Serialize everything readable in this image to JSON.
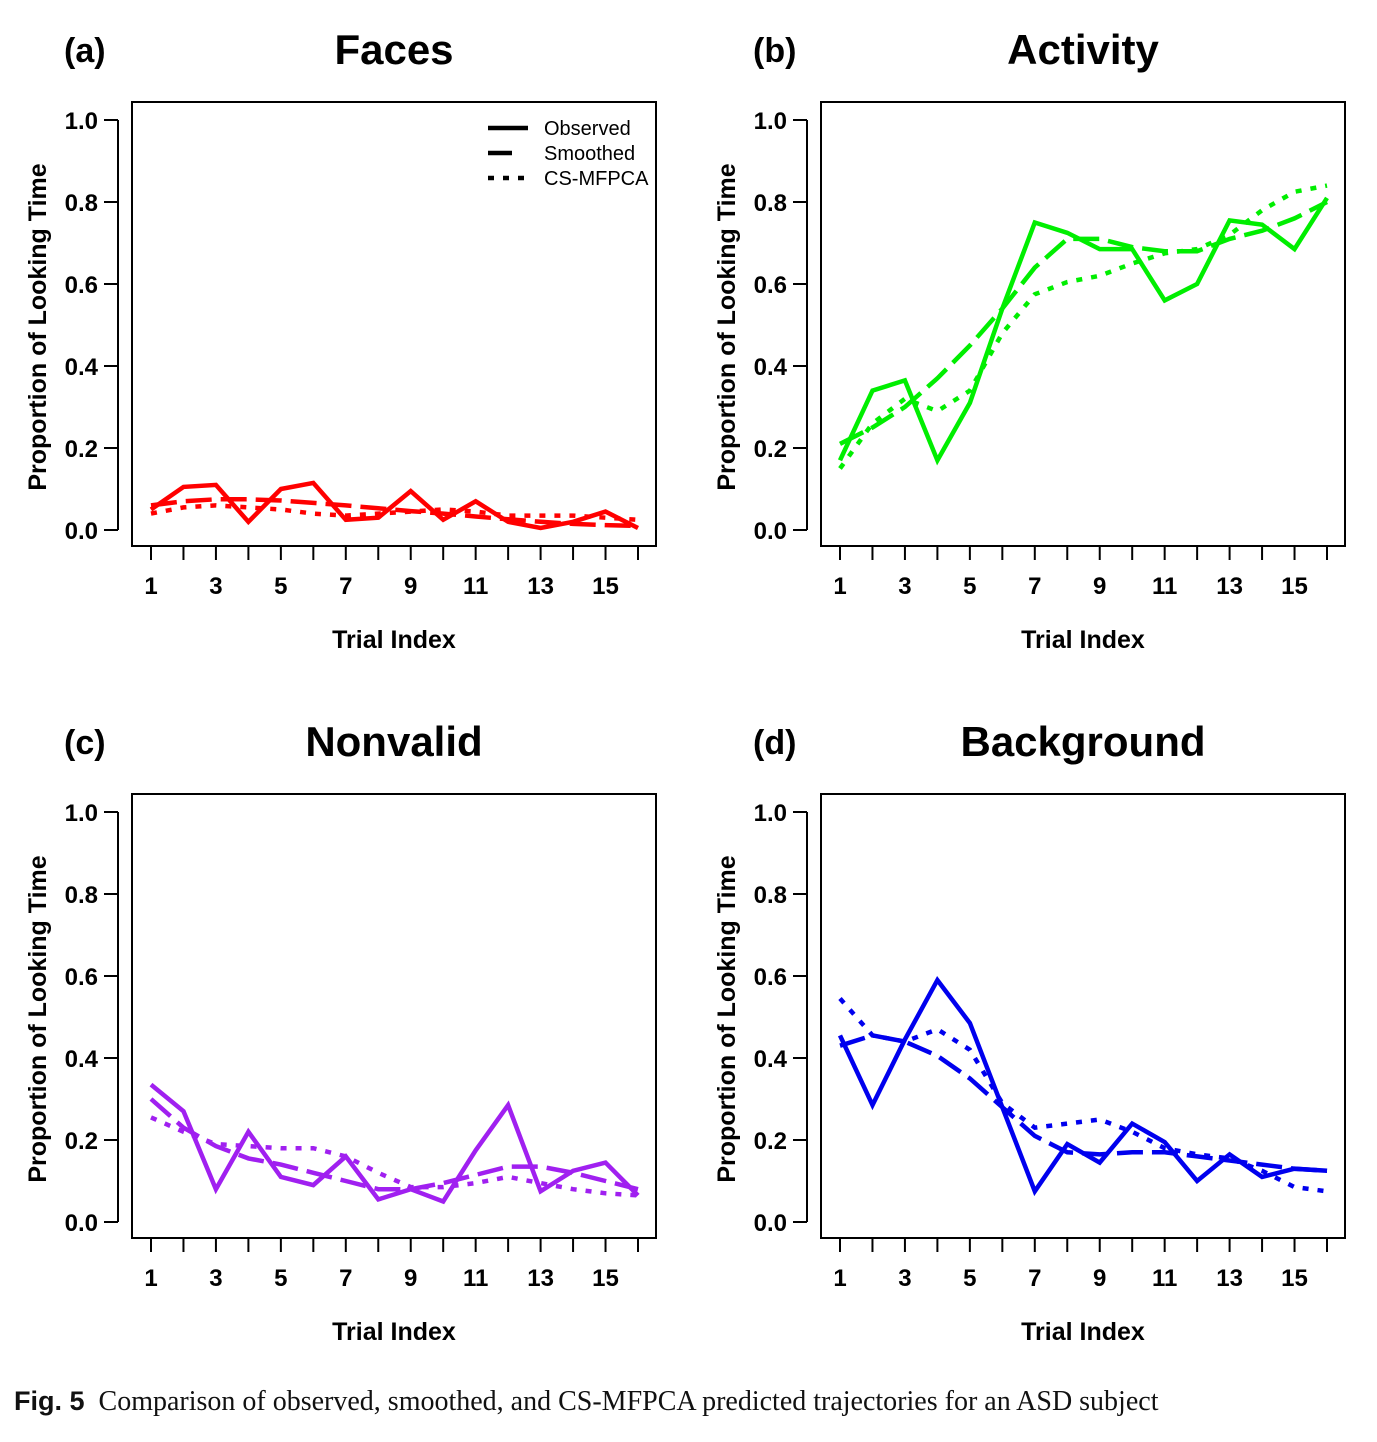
{
  "figure": {
    "caption_label": "Fig. 5",
    "caption_text": "Comparison of observed, smoothed, and CS-MFPCA predicted trajectories for an ASD subject"
  },
  "chart_data": [
    {
      "type": "line",
      "panel_label": "(a)",
      "title": "Faces",
      "xlabel": "Trial Index",
      "ylabel": "Proportion of Looking Time",
      "xlim": [
        1,
        16
      ],
      "ylim": [
        0,
        1
      ],
      "x_ticks": [
        1,
        2,
        3,
        4,
        5,
        6,
        7,
        8,
        9,
        10,
        11,
        12,
        13,
        14,
        15,
        16
      ],
      "x_tick_labels": [
        "1",
        "",
        "3",
        "",
        "5",
        "",
        "7",
        "",
        "9",
        "",
        "11",
        "",
        "13",
        "",
        "15",
        ""
      ],
      "y_ticks": [
        0.0,
        0.2,
        0.4,
        0.6,
        0.8,
        1.0
      ],
      "y_tick_labels": [
        "0.0",
        "0.2",
        "0.4",
        "0.6",
        "0.8",
        "1.0"
      ],
      "color": "#ff0000",
      "legend": {
        "placement": "top-right",
        "entries": [
          "Observed",
          "Smoothed",
          "CS-MFPCA"
        ]
      },
      "x": [
        1,
        2,
        3,
        4,
        5,
        6,
        7,
        8,
        9,
        10,
        11,
        12,
        13,
        14,
        15,
        16
      ],
      "series": [
        {
          "name": "Observed",
          "style": "solid",
          "values": [
            0.05,
            0.105,
            0.11,
            0.02,
            0.1,
            0.115,
            0.025,
            0.03,
            0.095,
            0.025,
            0.07,
            0.02,
            0.005,
            0.02,
            0.045,
            0.005
          ]
        },
        {
          "name": "Smoothed",
          "style": "dashed",
          "values": [
            0.06,
            0.07,
            0.075,
            0.075,
            0.072,
            0.066,
            0.06,
            0.053,
            0.046,
            0.04,
            0.033,
            0.026,
            0.02,
            0.015,
            0.012,
            0.01
          ]
        },
        {
          "name": "CS-MFPCA",
          "style": "dotted",
          "values": [
            0.04,
            0.055,
            0.06,
            0.055,
            0.05,
            0.04,
            0.035,
            0.04,
            0.045,
            0.05,
            0.045,
            0.035,
            0.035,
            0.035,
            0.03,
            0.025
          ]
        }
      ]
    },
    {
      "type": "line",
      "panel_label": "(b)",
      "title": "Activity",
      "xlabel": "Trial Index",
      "ylabel": "Proportion of Looking Time",
      "xlim": [
        1,
        16
      ],
      "ylim": [
        0,
        1
      ],
      "x_ticks": [
        1,
        2,
        3,
        4,
        5,
        6,
        7,
        8,
        9,
        10,
        11,
        12,
        13,
        14,
        15,
        16
      ],
      "x_tick_labels": [
        "1",
        "",
        "3",
        "",
        "5",
        "",
        "7",
        "",
        "9",
        "",
        "11",
        "",
        "13",
        "",
        "15",
        ""
      ],
      "y_ticks": [
        0.0,
        0.2,
        0.4,
        0.6,
        0.8,
        1.0
      ],
      "y_tick_labels": [
        "0.0",
        "0.2",
        "0.4",
        "0.6",
        "0.8",
        "1.0"
      ],
      "color": "#00ee00",
      "x": [
        1,
        2,
        3,
        4,
        5,
        6,
        7,
        8,
        9,
        10,
        11,
        12,
        13,
        14,
        15,
        16
      ],
      "series": [
        {
          "style": "solid",
          "values": [
            0.17,
            0.34,
            0.365,
            0.17,
            0.31,
            0.54,
            0.75,
            0.725,
            0.685,
            0.685,
            0.56,
            0.6,
            0.755,
            0.745,
            0.685,
            0.81
          ]
        },
        {
          "style": "dashed",
          "values": [
            0.21,
            0.25,
            0.3,
            0.37,
            0.45,
            0.54,
            0.64,
            0.71,
            0.71,
            0.69,
            0.68,
            0.68,
            0.71,
            0.73,
            0.76,
            0.8
          ]
        },
        {
          "style": "dotted",
          "values": [
            0.15,
            0.26,
            0.32,
            0.29,
            0.34,
            0.48,
            0.575,
            0.605,
            0.62,
            0.65,
            0.675,
            0.685,
            0.72,
            0.78,
            0.825,
            0.84
          ]
        }
      ]
    },
    {
      "type": "line",
      "panel_label": "(c)",
      "title": "Nonvalid",
      "xlabel": "Trial Index",
      "ylabel": "Proportion of Looking Time",
      "xlim": [
        1,
        16
      ],
      "ylim": [
        0,
        1
      ],
      "x_ticks": [
        1,
        2,
        3,
        4,
        5,
        6,
        7,
        8,
        9,
        10,
        11,
        12,
        13,
        14,
        15,
        16
      ],
      "x_tick_labels": [
        "1",
        "",
        "3",
        "",
        "5",
        "",
        "7",
        "",
        "9",
        "",
        "11",
        "",
        "13",
        "",
        "15",
        ""
      ],
      "y_ticks": [
        0.0,
        0.2,
        0.4,
        0.6,
        0.8,
        1.0
      ],
      "y_tick_labels": [
        "0.0",
        "0.2",
        "0.4",
        "0.6",
        "0.8",
        "1.0"
      ],
      "color": "#a020f0",
      "x": [
        1,
        2,
        3,
        4,
        5,
        6,
        7,
        8,
        9,
        10,
        11,
        12,
        13,
        14,
        15,
        16
      ],
      "series": [
        {
          "style": "solid",
          "values": [
            0.335,
            0.27,
            0.08,
            0.22,
            0.11,
            0.09,
            0.16,
            0.055,
            0.08,
            0.05,
            0.175,
            0.285,
            0.075,
            0.125,
            0.145,
            0.065
          ]
        },
        {
          "style": "dashed",
          "values": [
            0.3,
            0.23,
            0.185,
            0.155,
            0.14,
            0.12,
            0.1,
            0.08,
            0.08,
            0.095,
            0.115,
            0.135,
            0.135,
            0.12,
            0.1,
            0.08
          ]
        },
        {
          "style": "dotted",
          "values": [
            0.255,
            0.22,
            0.19,
            0.185,
            0.18,
            0.18,
            0.16,
            0.12,
            0.085,
            0.085,
            0.095,
            0.11,
            0.095,
            0.08,
            0.07,
            0.065
          ]
        }
      ]
    },
    {
      "type": "line",
      "panel_label": "(d)",
      "title": "Background",
      "xlabel": "Trial Index",
      "ylabel": "Proportion of Looking Time",
      "xlim": [
        1,
        16
      ],
      "ylim": [
        0,
        1
      ],
      "x_ticks": [
        1,
        2,
        3,
        4,
        5,
        6,
        7,
        8,
        9,
        10,
        11,
        12,
        13,
        14,
        15,
        16
      ],
      "x_tick_labels": [
        "1",
        "",
        "3",
        "",
        "5",
        "",
        "7",
        "",
        "9",
        "",
        "11",
        "",
        "13",
        "",
        "15",
        ""
      ],
      "y_ticks": [
        0.0,
        0.2,
        0.4,
        0.6,
        0.8,
        1.0
      ],
      "y_tick_labels": [
        "0.0",
        "0.2",
        "0.4",
        "0.6",
        "0.8",
        "1.0"
      ],
      "color": "#0000ee",
      "x": [
        1,
        2,
        3,
        4,
        5,
        6,
        7,
        8,
        9,
        10,
        11,
        12,
        13,
        14,
        15,
        16
      ],
      "series": [
        {
          "style": "solid",
          "values": [
            0.455,
            0.285,
            0.445,
            0.59,
            0.485,
            0.28,
            0.075,
            0.19,
            0.145,
            0.24,
            0.195,
            0.1,
            0.165,
            0.11,
            0.13,
            0.125
          ]
        },
        {
          "style": "dashed",
          "values": [
            0.43,
            0.455,
            0.44,
            0.405,
            0.35,
            0.28,
            0.21,
            0.17,
            0.165,
            0.17,
            0.17,
            0.16,
            0.15,
            0.14,
            0.13,
            0.125
          ]
        },
        {
          "style": "dotted",
          "values": [
            0.545,
            0.455,
            0.44,
            0.47,
            0.42,
            0.29,
            0.23,
            0.24,
            0.25,
            0.22,
            0.18,
            0.165,
            0.155,
            0.125,
            0.085,
            0.075
          ]
        }
      ]
    }
  ]
}
